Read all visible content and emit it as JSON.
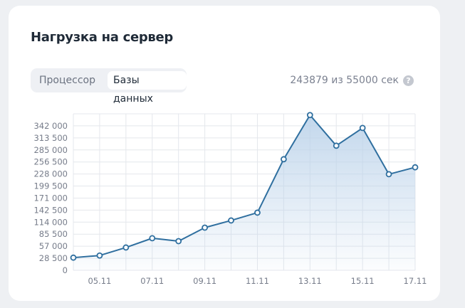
{
  "card": {
    "title": "Нагрузка на сервер"
  },
  "tabs": [
    {
      "label": "Процессор",
      "active": false
    },
    {
      "label": "Базы данных",
      "active": true
    }
  ],
  "quota": {
    "text": "243879 из 55000 сек",
    "help_icon": "question-circle-icon"
  },
  "colors": {
    "line": "#2f6f9f",
    "fill": "#c5d9ec",
    "grid": "#e4e7ec"
  },
  "chart_data": {
    "type": "area",
    "x": [
      "04.11",
      "05.11",
      "06.11",
      "07.11",
      "08.11",
      "09.11",
      "10.11",
      "11.11",
      "12.11",
      "13.11",
      "14.11",
      "15.11",
      "16.11",
      "17.11"
    ],
    "x_tick_labels": [
      "05.11",
      "07.11",
      "09.11",
      "11.11",
      "13.11",
      "15.11",
      "17.11"
    ],
    "values": [
      30000,
      35000,
      54000,
      76000,
      69000,
      101000,
      118000,
      136500,
      263000,
      367500,
      295000,
      337000,
      227500,
      243879
    ],
    "y_tick_labels": [
      "0",
      "28 500",
      "57 000",
      "85 500",
      "114 000",
      "142 500",
      "171 000",
      "199 500",
      "228 000",
      "256 500",
      "285 000",
      "313 500",
      "342 000"
    ],
    "ylim": [
      0,
      370500
    ],
    "grid": true,
    "markers": "hollow-circle"
  }
}
